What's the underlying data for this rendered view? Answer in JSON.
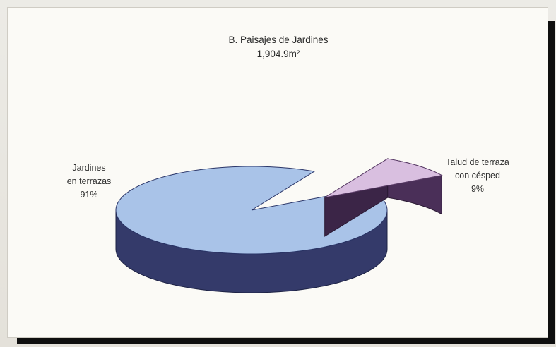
{
  "chart_data": {
    "type": "pie",
    "title": "B. Paisajes de Jardines",
    "subtitle": "1,904.9m²",
    "slices": [
      {
        "label_line1": "Jardines",
        "label_line2": "en terrazas",
        "pct_label": "91%",
        "value": 91,
        "color": "#a9c3e8",
        "side": "#343a6a"
      },
      {
        "label_line1": "Talud de terraza",
        "label_line2": "con césped",
        "pct_label": "9%",
        "value": 9,
        "color": "#d9bfe0",
        "side": "#4a2f58"
      }
    ]
  }
}
